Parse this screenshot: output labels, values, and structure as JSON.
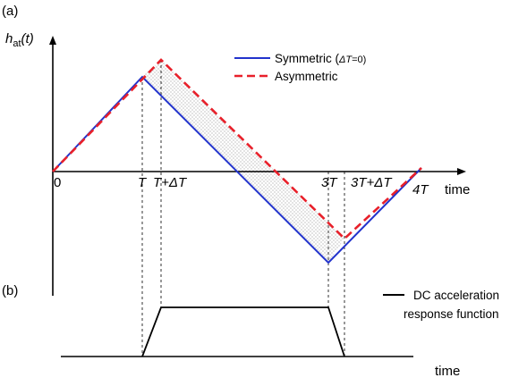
{
  "figure": {
    "panel_a_label": "(a)",
    "panel_b_label": "(b)",
    "y_label": {
      "base": "h",
      "sub": "at",
      "arg": "(t)"
    },
    "x_axis_title": "time",
    "x_axis_title_b": "time",
    "ticks": [
      "0",
      "T",
      "T+ΔT",
      "3T",
      "3T+ΔT",
      "4T"
    ],
    "legend": {
      "symmetric_main": "Symmetric (",
      "symmetric_delta": "ΔT",
      "symmetric_tail": "=0)",
      "asymmetric": "Asymmetric",
      "dc": "DC acceleration",
      "dc_line2": "response function"
    },
    "colors": {
      "symmetric": "#2233cc",
      "asymmetric": "#e8202a",
      "axes": "#000000",
      "dc": "#000000"
    }
  }
}
